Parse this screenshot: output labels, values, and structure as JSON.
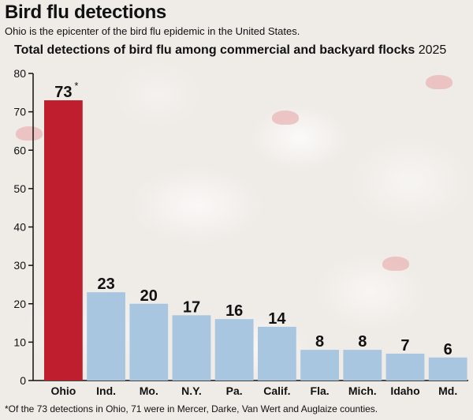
{
  "header": {
    "title": "Bird flu detections",
    "subtitle": "Ohio is the epicenter of the bird flu epidemic in the United States."
  },
  "chart_data": {
    "type": "bar",
    "title": "Total detections of bird flu among commercial and backyard flocks",
    "title_suffix": "2025",
    "categories": [
      "Ohio",
      "Ind.",
      "Mo.",
      "N.Y.",
      "Pa.",
      "Calif.",
      "Fla.",
      "Mich.",
      "Idaho",
      "Md."
    ],
    "values": [
      73,
      23,
      20,
      17,
      16,
      14,
      8,
      8,
      7,
      6
    ],
    "data_labels": [
      "73",
      "23",
      "20",
      "17",
      "16",
      "14",
      "8",
      "8",
      "7",
      "6"
    ],
    "highlight_index": 0,
    "annotation_marker": "*",
    "ylim": [
      0,
      80
    ],
    "yticks": [
      0,
      10,
      20,
      30,
      40,
      50,
      60,
      70,
      80
    ],
    "xlabel": "",
    "ylabel": "",
    "grid": false,
    "colors": {
      "highlight": "#be1e2d",
      "bar": "#a9c6e0",
      "axis": "#111111"
    }
  },
  "footnote": "*Of the 73 detections in Ohio, 71 were in Mercer, Darke, Van Wert and Auglaize counties."
}
